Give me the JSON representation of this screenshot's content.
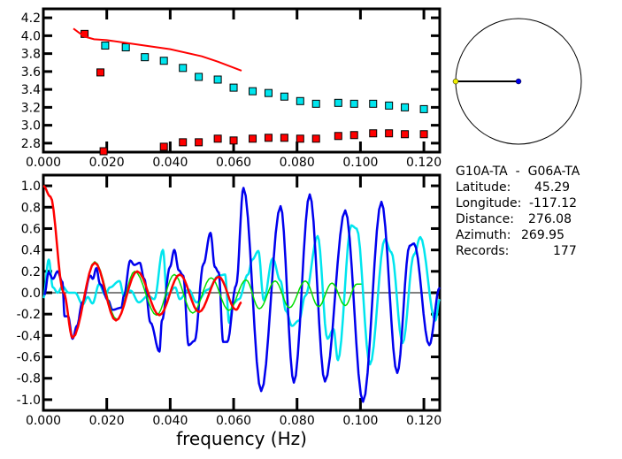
{
  "info": {
    "pair": "G10A-TA  -  G06A-TA",
    "lines": [
      {
        "label": "Latitude:",
        "value": "45.29"
      },
      {
        "label": "Longitude:",
        "value": "-117.12"
      },
      {
        "label": "Distance:",
        "value": "276.08"
      },
      {
        "label": "Azimuth:",
        "value": "269.95"
      },
      {
        "label": "Records:",
        "value": "177"
      }
    ],
    "azimuth_deg": 269.95
  },
  "colors": {
    "red": "#ff0000",
    "cyan": "#00e5ee",
    "blue": "#0000ee",
    "green": "#00dd00",
    "yellow": "#eeee00"
  },
  "chart_data": [
    {
      "type": "scatter",
      "xlim": [
        0,
        0.125
      ],
      "ylim": [
        2.7,
        4.3
      ],
      "xticks": [
        "0.000",
        "0.020",
        "0.040",
        "0.060",
        "0.080",
        "0.100",
        "0.120"
      ],
      "yticks": [
        "2.8",
        "3.0",
        "3.2",
        "3.4",
        "3.6",
        "3.8",
        "4.0",
        "4.2"
      ],
      "series": [
        {
          "color": "cyan",
          "mode": "markers",
          "points": [
            [
              0.0195,
              3.89
            ],
            [
              0.026,
              3.87
            ],
            [
              0.032,
              3.76
            ],
            [
              0.038,
              3.72
            ],
            [
              0.044,
              3.64
            ],
            [
              0.049,
              3.54
            ],
            [
              0.055,
              3.51
            ],
            [
              0.06,
              3.42
            ],
            [
              0.066,
              3.38
            ],
            [
              0.071,
              3.36
            ],
            [
              0.076,
              3.32
            ],
            [
              0.081,
              3.27
            ],
            [
              0.086,
              3.24
            ],
            [
              0.093,
              3.25
            ],
            [
              0.098,
              3.24
            ],
            [
              0.104,
              3.24
            ],
            [
              0.109,
              3.22
            ],
            [
              0.114,
              3.2
            ],
            [
              0.12,
              3.18
            ]
          ]
        },
        {
          "color": "red",
          "mode": "markers",
          "points": [
            [
              0.013,
              4.02
            ],
            [
              0.018,
              3.59
            ],
            [
              0.019,
              2.71
            ],
            [
              0.038,
              2.76
            ],
            [
              0.044,
              2.81
            ],
            [
              0.049,
              2.81
            ],
            [
              0.055,
              2.85
            ],
            [
              0.06,
              2.83
            ],
            [
              0.066,
              2.85
            ],
            [
              0.071,
              2.86
            ],
            [
              0.076,
              2.86
            ],
            [
              0.081,
              2.85
            ],
            [
              0.086,
              2.85
            ],
            [
              0.093,
              2.88
            ],
            [
              0.098,
              2.89
            ],
            [
              0.104,
              2.91
            ],
            [
              0.109,
              2.91
            ],
            [
              0.114,
              2.9
            ],
            [
              0.12,
              2.9
            ]
          ]
        },
        {
          "color": "red",
          "mode": "line",
          "points": [
            [
              0.0095,
              4.08
            ],
            [
              0.011,
              4.04
            ],
            [
              0.013,
              3.99
            ],
            [
              0.016,
              3.96
            ],
            [
              0.02,
              3.95
            ],
            [
              0.03,
              3.9
            ],
            [
              0.04,
              3.85
            ],
            [
              0.05,
              3.77
            ],
            [
              0.055,
              3.71
            ],
            [
              0.0625,
              3.61
            ]
          ]
        }
      ]
    },
    {
      "type": "line",
      "xlabel": "frequency (Hz)",
      "xlim": [
        0,
        0.125
      ],
      "ylim": [
        -1.1,
        1.1
      ],
      "xticks": [
        "0.000",
        "0.020",
        "0.040",
        "0.060",
        "0.080",
        "0.100",
        "0.120"
      ],
      "yticks": [
        "-1.0",
        "-0.8",
        "-0.6",
        "-0.4",
        "-0.2",
        "0.0",
        "0.2",
        "0.4",
        "0.6",
        "0.8",
        "1.0"
      ],
      "series": [
        {
          "color": "cyan",
          "points": [
            [
              0,
              -0.05
            ],
            [
              0.0017,
              0.31
            ],
            [
              0.003,
              0.05
            ],
            [
              0.0045,
              0.0
            ],
            [
              0.006,
              0.06
            ],
            [
              0.008,
              0.0
            ],
            [
              0.01,
              0.0
            ],
            [
              0.0124,
              -0.11
            ],
            [
              0.014,
              -0.04
            ],
            [
              0.0155,
              -0.1
            ],
            [
              0.0176,
              0.08
            ],
            [
              0.0195,
              -0.02
            ],
            [
              0.021,
              0.05
            ],
            [
              0.024,
              0.11
            ],
            [
              0.0254,
              -0.03
            ],
            [
              0.0275,
              0.02
            ],
            [
              0.0301,
              -0.09
            ],
            [
              0.033,
              -0.03
            ],
            [
              0.035,
              -0.06
            ],
            [
              0.0377,
              0.4
            ],
            [
              0.039,
              -0.02
            ],
            [
              0.0416,
              0.05
            ],
            [
              0.043,
              -0.06
            ],
            [
              0.0458,
              0.03
            ],
            [
              0.0483,
              -0.09
            ],
            [
              0.0519,
              0.03
            ],
            [
              0.0553,
              0.16
            ],
            [
              0.0573,
              0.17
            ],
            [
              0.0586,
              -0.28
            ],
            [
              0.0598,
              -0.1
            ],
            [
              0.0617,
              -0.06
            ],
            [
              0.0645,
              0.17
            ],
            [
              0.0659,
              0.31
            ],
            [
              0.0678,
              0.39
            ],
            [
              0.0695,
              -0.07
            ],
            [
              0.0723,
              0.32
            ],
            [
              0.0748,
              0.11
            ],
            [
              0.0765,
              -0.17
            ],
            [
              0.0784,
              -0.31
            ],
            [
              0.0806,
              -0.26
            ],
            [
              0.0826,
              -0.03
            ],
            [
              0.0865,
              0.53
            ],
            [
              0.0896,
              -0.43
            ],
            [
              0.0915,
              -0.34
            ],
            [
              0.0929,
              -0.63
            ],
            [
              0.0971,
              0.63
            ],
            [
              0.0988,
              0.6
            ],
            [
              0.103,
              -0.67
            ],
            [
              0.1077,
              0.5
            ],
            [
              0.1097,
              0.38
            ],
            [
              0.1133,
              -0.47
            ],
            [
              0.1169,
              0.36
            ],
            [
              0.1189,
              0.52
            ],
            [
              0.1236,
              -0.26
            ],
            [
              0.125,
              -0.06
            ]
          ]
        },
        {
          "color": "blue",
          "points": [
            [
              0.0003,
              -0.02
            ],
            [
              0.0017,
              0.19
            ],
            [
              0.003,
              0.13
            ],
            [
              0.0045,
              0.2
            ],
            [
              0.006,
              0.1
            ],
            [
              0.0067,
              -0.22
            ],
            [
              0.0078,
              -0.22
            ],
            [
              0.0092,
              -0.43
            ],
            [
              0.0106,
              -0.31
            ],
            [
              0.0123,
              -0.09
            ],
            [
              0.0148,
              0.16
            ],
            [
              0.0156,
              0.13
            ],
            [
              0.0167,
              0.23
            ],
            [
              0.0179,
              0.08
            ],
            [
              0.0204,
              -0.07
            ],
            [
              0.0218,
              -0.16
            ],
            [
              0.0246,
              -0.14
            ],
            [
              0.0254,
              -0.03
            ],
            [
              0.0274,
              0.3
            ],
            [
              0.0287,
              0.26
            ],
            [
              0.0304,
              0.28
            ],
            [
              0.0318,
              0.13
            ],
            [
              0.0338,
              -0.28
            ],
            [
              0.0366,
              -0.55
            ],
            [
              0.0374,
              -0.26
            ],
            [
              0.0399,
              0.24
            ],
            [
              0.0413,
              0.4
            ],
            [
              0.0427,
              0.21
            ],
            [
              0.0441,
              0.16
            ],
            [
              0.0458,
              -0.49
            ],
            [
              0.0477,
              -0.45
            ],
            [
              0.0505,
              0.27
            ],
            [
              0.0527,
              0.56
            ],
            [
              0.0541,
              0.24
            ],
            [
              0.0553,
              0.19
            ],
            [
              0.0567,
              -0.46
            ],
            [
              0.058,
              -0.46
            ],
            [
              0.0608,
              0.07
            ],
            [
              0.0631,
              0.98
            ],
            [
              0.0687,
              -0.92
            ],
            [
              0.0748,
              0.81
            ],
            [
              0.079,
              -0.84
            ],
            [
              0.084,
              0.92
            ],
            [
              0.0888,
              -0.83
            ],
            [
              0.0952,
              0.77
            ],
            [
              0.1008,
              -1.02
            ],
            [
              0.1066,
              0.85
            ],
            [
              0.1116,
              -0.75
            ],
            [
              0.1155,
              0.44
            ],
            [
              0.1169,
              0.46
            ],
            [
              0.1217,
              -0.49
            ],
            [
              0.125,
              0.05
            ]
          ]
        },
        {
          "color": "green",
          "points": [
            [
              0,
              1.0
            ],
            [
              0.0022,
              0.9
            ],
            [
              0.0064,
              0.0
            ],
            [
              0.0092,
              -0.42
            ],
            [
              0.0162,
              0.29
            ],
            [
              0.0232,
              -0.25
            ],
            [
              0.0288,
              0.2
            ],
            [
              0.0357,
              -0.21
            ],
            [
              0.0413,
              0.17
            ],
            [
              0.0471,
              -0.19
            ],
            [
              0.0529,
              0.14
            ],
            [
              0.0585,
              -0.165
            ],
            [
              0.0639,
              0.12
            ],
            [
              0.0681,
              -0.15
            ],
            [
              0.0731,
              0.11
            ],
            [
              0.0776,
              -0.14
            ],
            [
              0.0826,
              0.11
            ],
            [
              0.0868,
              -0.13
            ],
            [
              0.091,
              0.09
            ],
            [
              0.0952,
              -0.12
            ],
            [
              0.0988,
              0.08
            ],
            [
              0.1003,
              0.08
            ]
          ]
        },
        {
          "color": "red",
          "points": [
            [
              0,
              1.0
            ],
            [
              0.0022,
              0.9
            ],
            [
              0.0064,
              0.0
            ],
            [
              0.0092,
              -0.42
            ],
            [
              0.0162,
              0.28
            ],
            [
              0.0229,
              -0.26
            ],
            [
              0.0296,
              0.2
            ],
            [
              0.0366,
              -0.21
            ],
            [
              0.043,
              0.17
            ],
            [
              0.0491,
              -0.18
            ],
            [
              0.0553,
              0.15
            ],
            [
              0.0608,
              -0.16
            ],
            [
              0.0625,
              -0.09
            ]
          ]
        }
      ]
    }
  ]
}
